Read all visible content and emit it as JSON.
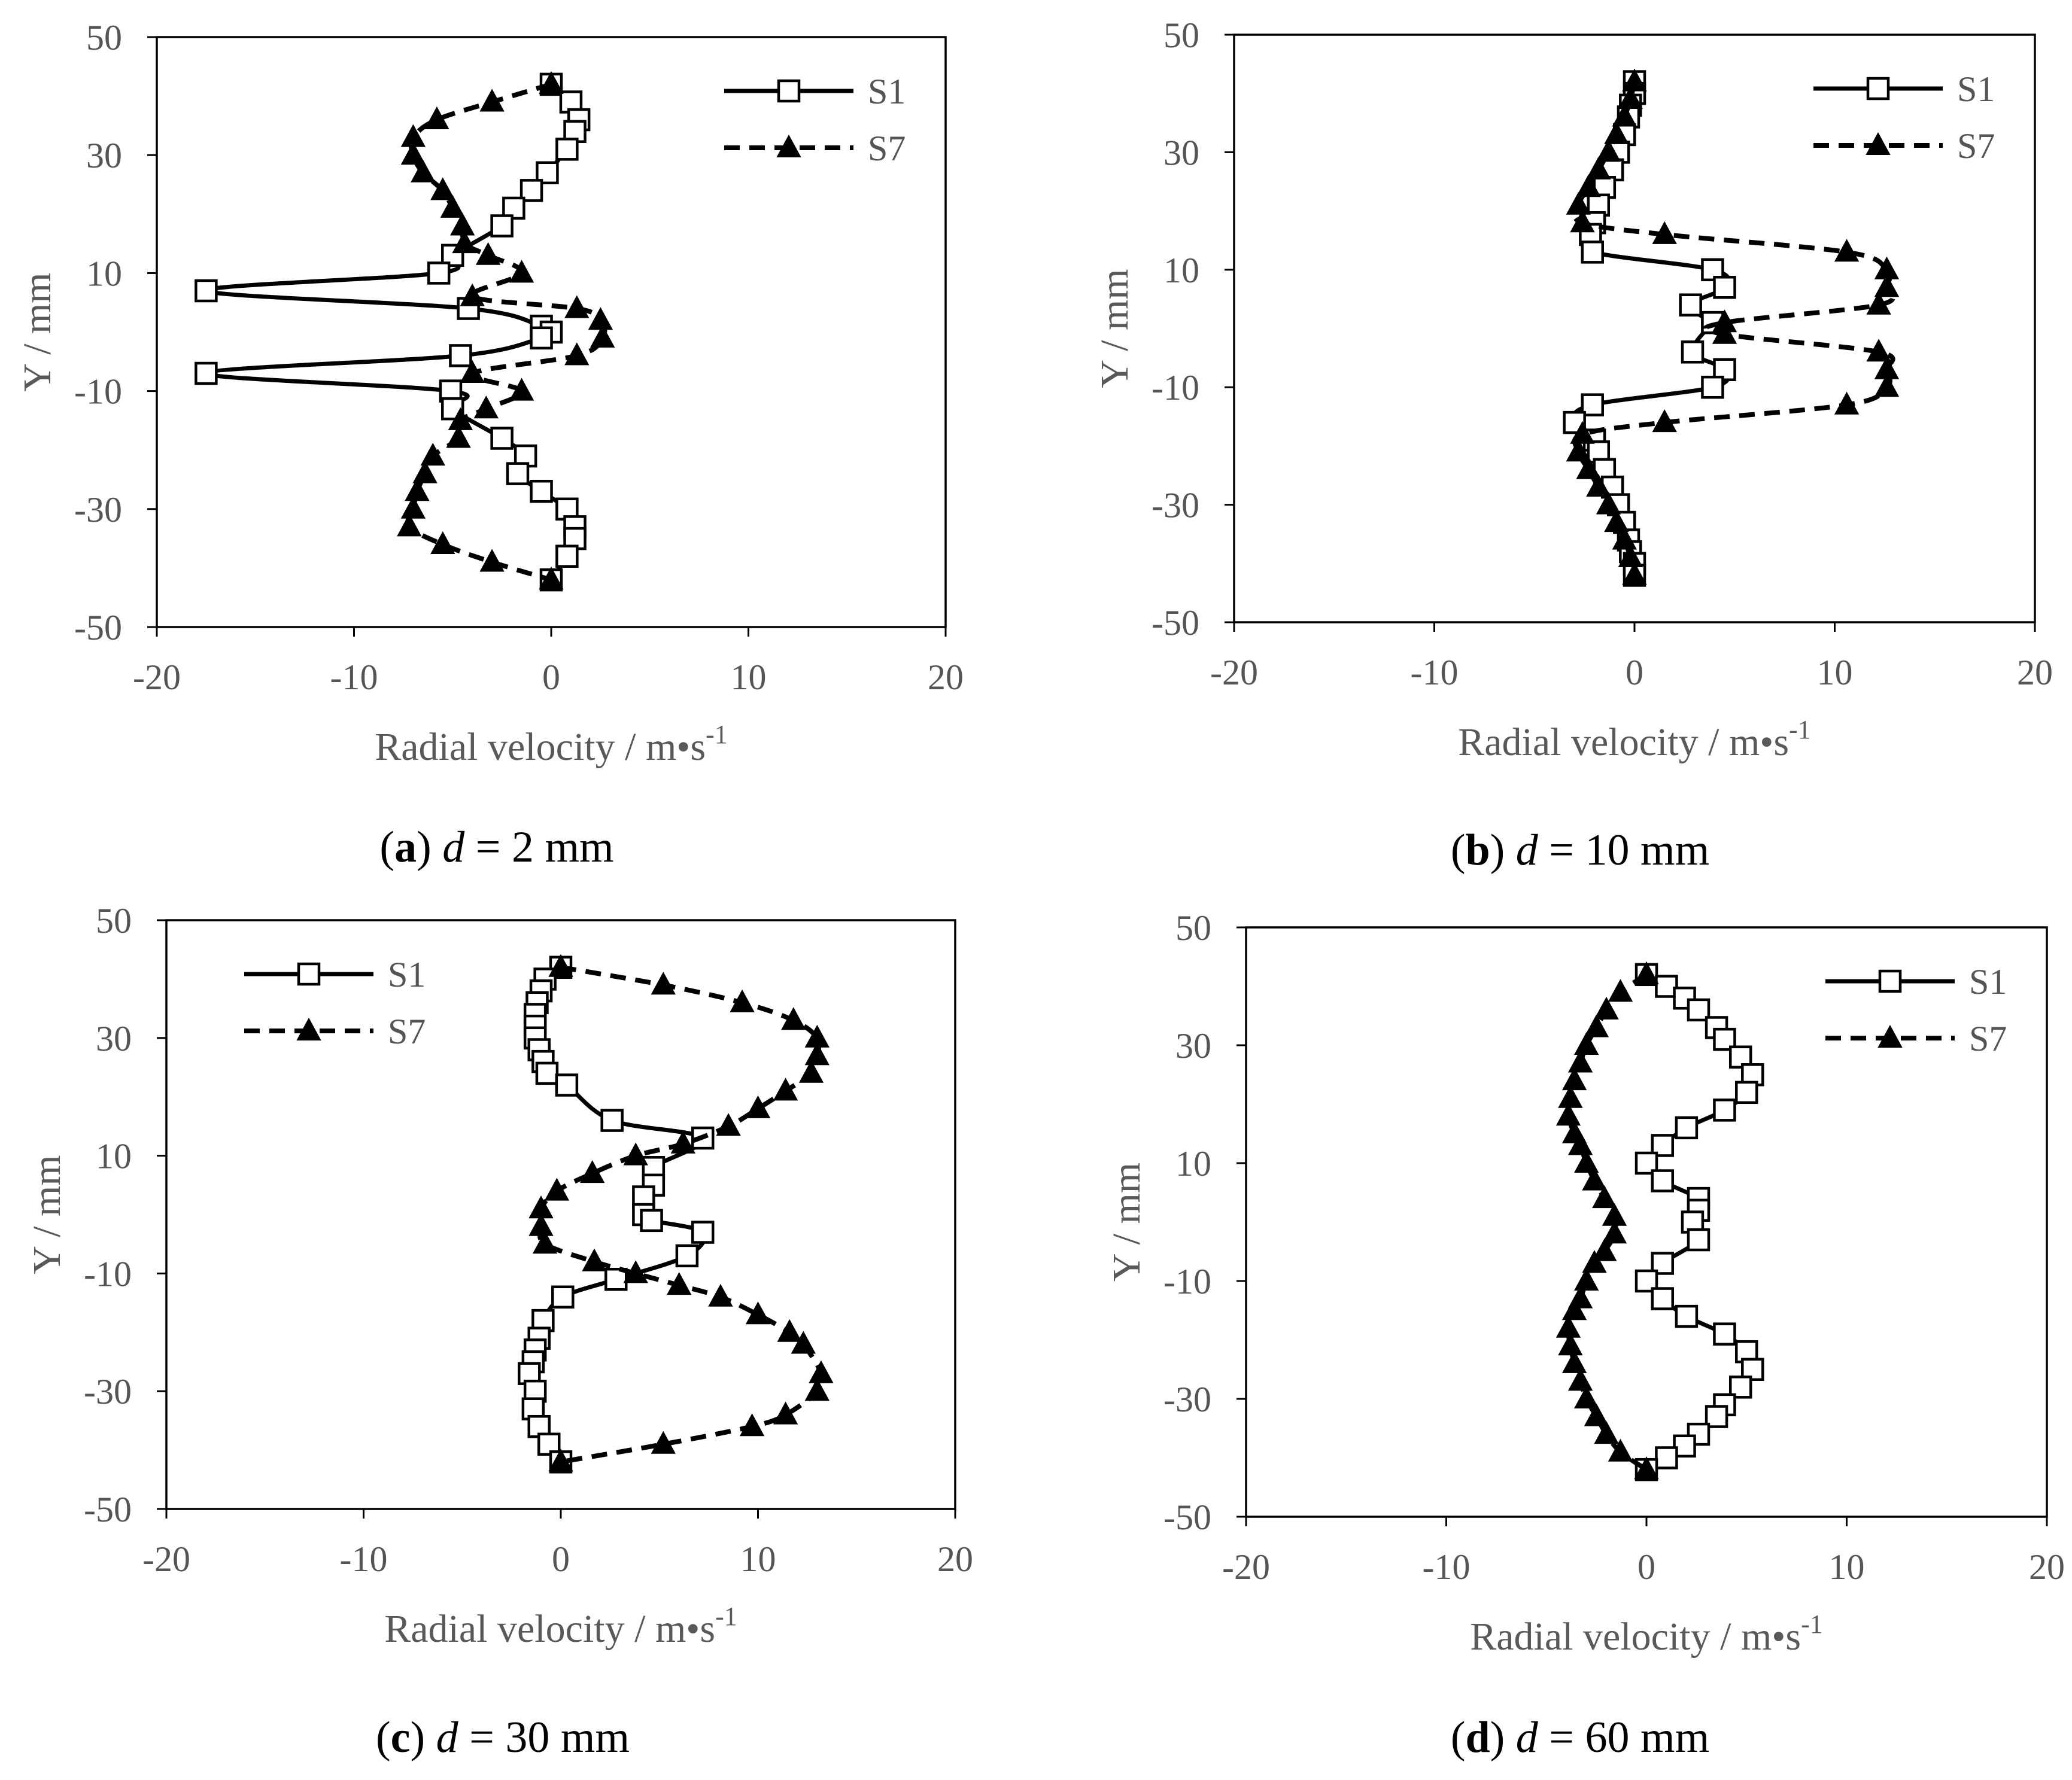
{
  "figure": {
    "panels": [
      {
        "caption_letter": "a",
        "caption_var": "d",
        "caption_rest": " = 2 mm"
      },
      {
        "caption_letter": "b",
        "caption_var": "d",
        "caption_rest": " = 10 mm"
      },
      {
        "caption_letter": "c",
        "caption_var": "d",
        "caption_rest": " = 30 mm"
      },
      {
        "caption_letter": "d",
        "caption_var": "d",
        "caption_rest": " = 60 mm"
      }
    ]
  },
  "chart_data": [
    {
      "type": "line",
      "caption": "(a) d = 2 mm",
      "xlabel": "Radial velocity / m•s",
      "xlabel_sup": "-1",
      "ylabel": "Y / mm",
      "xlim": [
        -20,
        20
      ],
      "ylim": [
        -50,
        50
      ],
      "xticks": [
        -20,
        -10,
        0,
        10,
        20
      ],
      "yticks": [
        -50,
        -30,
        -10,
        10,
        30,
        50
      ],
      "grid": false,
      "legend_position": "top-right",
      "series": [
        {
          "name": "S1",
          "line_style": "solid",
          "marker": "open-square",
          "x": [
            0.0,
            1.0,
            1.4,
            1.2,
            0.8,
            -0.2,
            -1.0,
            -1.9,
            -2.5,
            -5.0,
            -5.7,
            -17.5,
            -4.2,
            -0.5,
            0.0,
            -0.5,
            -4.6,
            -17.5,
            -5.1,
            -5.0,
            -2.5,
            -1.3,
            -1.7,
            -0.5,
            0.8,
            1.2,
            1.2,
            0.8,
            0.0
          ],
          "y": [
            42,
            39,
            36,
            34,
            31,
            27,
            24,
            21,
            18,
            13,
            10,
            7,
            4,
            1,
            0,
            -1,
            -4,
            -7,
            -10,
            -13,
            -18,
            -21,
            -24,
            -27,
            -30,
            -33,
            -35,
            -38,
            -42
          ]
        },
        {
          "name": "S7",
          "line_style": "dashed",
          "marker": "filled-triangle",
          "x": [
            0.0,
            -3.0,
            -5.8,
            -7.0,
            -7.0,
            -6.5,
            -5.5,
            -5.0,
            -4.5,
            -4.4,
            -3.2,
            -1.5,
            -4.0,
            1.3,
            2.5,
            2.6,
            1.3,
            -4.0,
            -1.5,
            -3.3,
            -4.6,
            -4.7,
            -6.0,
            -6.4,
            -6.8,
            -7.0,
            -7.2,
            -5.5,
            -3.0,
            0.0
          ],
          "y": [
            42,
            39,
            36,
            33,
            30,
            27,
            24,
            21,
            18,
            15,
            13,
            10,
            6,
            4,
            2,
            -1,
            -4,
            -7,
            -10,
            -13,
            -15,
            -18,
            -21,
            -24,
            -27,
            -30,
            -33,
            -36,
            -39,
            -42
          ]
        }
      ]
    },
    {
      "type": "line",
      "caption": "(b) d = 10 mm",
      "xlabel": "Radial velocity / m•s",
      "xlabel_sup": "-1",
      "ylabel": "Y / mm",
      "xlim": [
        -20,
        20
      ],
      "ylim": [
        -50,
        50
      ],
      "xticks": [
        -20,
        -10,
        0,
        10,
        20
      ],
      "yticks": [
        -50,
        -30,
        -10,
        10,
        30,
        50
      ],
      "grid": false,
      "legend_position": "top-right",
      "series": [
        {
          "name": "S1",
          "line_style": "solid",
          "marker": "open-square",
          "x": [
            0.0,
            0.0,
            -0.2,
            -0.3,
            -0.5,
            -0.8,
            -1.1,
            -1.5,
            -1.8,
            -2.0,
            -2.2,
            -2.1,
            3.9,
            4.5,
            2.8,
            3.9,
            3.9,
            2.9,
            4.5,
            3.9,
            -2.1,
            -3.0,
            -2.0,
            -1.8,
            -1.5,
            -1.1,
            -0.8,
            -0.5,
            -0.3,
            -0.2,
            0.0,
            0.0
          ],
          "y": [
            42,
            40,
            38,
            36,
            33,
            30,
            27,
            24,
            21,
            18,
            16,
            13,
            10,
            7,
            4,
            1,
            1,
            -4,
            -7,
            -10,
            -13,
            -16,
            -19,
            -21,
            -24,
            -27,
            -30,
            -33,
            -36,
            -38,
            -40,
            -42
          ]
        },
        {
          "name": "S7",
          "line_style": "dashed",
          "marker": "filled-triangle",
          "x": [
            0.0,
            -0.2,
            -0.5,
            -0.9,
            -1.3,
            -1.8,
            -2.3,
            -2.8,
            -2.6,
            1.5,
            10.6,
            12.6,
            12.6,
            12.2,
            4.5,
            4.5,
            12.2,
            12.6,
            12.6,
            10.6,
            1.5,
            -2.6,
            -2.8,
            -2.3,
            -1.8,
            -1.3,
            -0.9,
            -0.5,
            -0.2,
            0.0
          ],
          "y": [
            42,
            39,
            36,
            33,
            30,
            27,
            24,
            21,
            18,
            16,
            13,
            10,
            7,
            4,
            1,
            -1,
            -4,
            -7,
            -10,
            -13,
            -16,
            -18,
            -21,
            -24,
            -27,
            -30,
            -33,
            -36,
            -39,
            -42
          ]
        }
      ]
    },
    {
      "type": "line",
      "caption": "(c) d = 30 mm",
      "xlabel": "Radial velocity / m•s",
      "xlabel_sup": "-1",
      "ylabel": "Y / mm",
      "xlim": [
        -20,
        20
      ],
      "ylim": [
        -50,
        50
      ],
      "xticks": [
        -20,
        -10,
        0,
        10,
        20
      ],
      "yticks": [
        -50,
        -30,
        -10,
        10,
        30,
        50
      ],
      "grid": false,
      "legend_position": "top-left",
      "series": [
        {
          "name": "S1",
          "line_style": "solid",
          "marker": "open-square",
          "x": [
            0.0,
            -0.8,
            -1.0,
            -1.2,
            -1.3,
            -1.3,
            -1.3,
            -1.1,
            -0.9,
            -0.7,
            0.3,
            2.6,
            7.2,
            4.7,
            4.7,
            4.2,
            4.2,
            4.6,
            7.2,
            6.4,
            2.8,
            0.1,
            -0.9,
            -1.1,
            -1.3,
            -1.4,
            -1.6,
            -1.3,
            -1.4,
            -1.1,
            -0.6,
            0.0
          ],
          "y": [
            42,
            40,
            38,
            36,
            34,
            32,
            30,
            28,
            26,
            24,
            22,
            16,
            13,
            8,
            5,
            3,
            0,
            -1,
            -3,
            -7,
            -11,
            -14,
            -18,
            -21,
            -23,
            -25,
            -27,
            -30,
            -33,
            -36,
            -39,
            -42
          ]
        },
        {
          "name": "S7",
          "line_style": "dashed",
          "marker": "filled-triangle",
          "x": [
            0.0,
            5.2,
            9.2,
            11.8,
            13.0,
            13.0,
            12.7,
            11.4,
            10.0,
            8.5,
            6.2,
            3.8,
            1.6,
            -0.2,
            -1.0,
            -1.0,
            -0.8,
            1.7,
            3.8,
            6.0,
            8.1,
            10.0,
            11.6,
            12.3,
            13.2,
            13.0,
            11.4,
            9.7,
            5.2,
            0.0
          ],
          "y": [
            42,
            39,
            36,
            33,
            30,
            27,
            24,
            21,
            18,
            15,
            12,
            10,
            7,
            4,
            1,
            -2,
            -5,
            -8,
            -10,
            -12,
            -14,
            -17,
            -20,
            -22,
            -27,
            -30,
            -34,
            -36,
            -39,
            -42
          ]
        }
      ]
    },
    {
      "type": "line",
      "caption": "(d) d = 60 mm",
      "xlabel": "Radial velocity / m•s",
      "xlabel_sup": "-1",
      "ylabel": "Y / mm",
      "xlim": [
        -20,
        20
      ],
      "ylim": [
        -50,
        50
      ],
      "xticks": [
        -20,
        -10,
        0,
        10,
        20
      ],
      "yticks": [
        -50,
        -30,
        -10,
        10,
        30,
        50
      ],
      "grid": false,
      "legend_position": "top-right",
      "series": [
        {
          "name": "S1",
          "line_style": "solid",
          "marker": "open-square",
          "x": [
            0.0,
            1.0,
            1.9,
            2.6,
            3.5,
            3.9,
            4.7,
            5.3,
            5.0,
            3.9,
            2.0,
            0.8,
            0.0,
            0.8,
            2.6,
            2.6,
            2.3,
            2.6,
            0.8,
            0.0,
            0.8,
            2.0,
            3.9,
            5.0,
            5.3,
            4.7,
            3.9,
            3.5,
            2.6,
            1.9,
            1.0,
            0.0
          ],
          "y": [
            42,
            40,
            38,
            36,
            33,
            31,
            28,
            25,
            22,
            19,
            16,
            13,
            10,
            7,
            4,
            2,
            0,
            -3,
            -7,
            -10,
            -13,
            -16,
            -19,
            -22,
            -25,
            -28,
            -31,
            -33,
            -36,
            -38,
            -40,
            -42
          ]
        },
        {
          "name": "S7",
          "line_style": "dashed",
          "marker": "filled-triangle",
          "x": [
            0.0,
            -1.3,
            -2.0,
            -2.5,
            -3.0,
            -3.3,
            -3.6,
            -3.8,
            -3.9,
            -3.6,
            -3.3,
            -3.0,
            -2.6,
            -2.1,
            -1.6,
            -1.6,
            -2.1,
            -2.6,
            -3.0,
            -3.3,
            -3.6,
            -3.9,
            -3.8,
            -3.6,
            -3.3,
            -3.0,
            -2.5,
            -2.0,
            -1.3,
            0.0
          ],
          "y": [
            42,
            39,
            36,
            33,
            30,
            27,
            24,
            21,
            18,
            15,
            13,
            10,
            7,
            4,
            1,
            -2,
            -5,
            -7,
            -10,
            -13,
            -15,
            -18,
            -21,
            -24,
            -27,
            -30,
            -33,
            -36,
            -39,
            -42
          ]
        }
      ]
    }
  ]
}
